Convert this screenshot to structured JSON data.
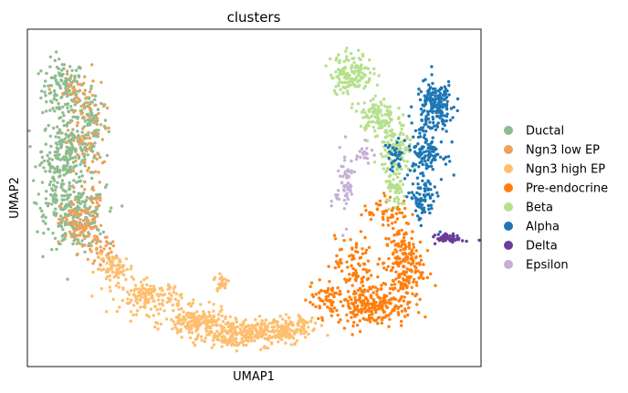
{
  "chart_data": {
    "type": "scatter",
    "title": "clusters",
    "xlabel": "UMAP1",
    "ylabel": "UMAP2",
    "grid": false,
    "legend_placement": "right",
    "series": [
      {
        "name": "Ductal",
        "color": "#8fbc8f",
        "regions": [
          [
            -7.9,
            6.2,
            0.55,
            0.75,
            140
          ],
          [
            -7.7,
            4.4,
            0.7,
            0.85,
            230
          ],
          [
            -7.5,
            2.4,
            0.75,
            0.75,
            230
          ],
          [
            -7.0,
            5.3,
            0.4,
            0.9,
            80
          ],
          [
            -8.2,
            3.4,
            0.35,
            0.8,
            60
          ]
        ]
      },
      {
        "name": "Ngn3 low EP",
        "color": "#f0a05a",
        "regions": [
          [
            -7.2,
            4.7,
            0.5,
            1.6,
            80
          ],
          [
            -7.3,
            2.2,
            0.55,
            0.65,
            110
          ],
          [
            -6.6,
            1.4,
            0.4,
            0.3,
            30
          ],
          [
            -7.6,
            6.1,
            0.4,
            0.5,
            25
          ]
        ]
      },
      {
        "name": "Ngn3 high EP",
        "color": "#fdbf6f",
        "regions": [
          [
            -6.3,
            0.9,
            0.5,
            0.35,
            80
          ],
          [
            -5.2,
            0.05,
            0.8,
            0.4,
            150
          ],
          [
            -3.8,
            -0.7,
            0.8,
            0.35,
            180
          ],
          [
            -2.6,
            -1.05,
            0.8,
            0.35,
            180
          ],
          [
            -1.4,
            -0.95,
            0.8,
            0.35,
            150
          ],
          [
            -3.0,
            0.5,
            0.2,
            0.25,
            25
          ],
          [
            -0.5,
            -0.75,
            0.45,
            0.25,
            50
          ]
        ]
      },
      {
        "name": "Pre-endocrine",
        "color": "#ff7f0e",
        "regions": [
          [
            1.6,
            -0.15,
            0.9,
            0.5,
            230
          ],
          [
            2.6,
            1.0,
            0.5,
            1.0,
            200
          ],
          [
            0.2,
            0.0,
            0.45,
            0.45,
            60
          ],
          [
            1.1,
            1.0,
            0.5,
            0.7,
            80
          ],
          [
            2.1,
            2.6,
            0.6,
            0.35,
            50
          ]
        ]
      },
      {
        "name": "Beta",
        "color": "#b5e08c",
        "regions": [
          [
            1.0,
            6.7,
            0.55,
            0.5,
            150
          ],
          [
            1.8,
            5.4,
            0.45,
            0.5,
            110
          ],
          [
            2.4,
            4.4,
            0.4,
            0.65,
            120
          ],
          [
            2.4,
            3.2,
            0.25,
            0.5,
            50
          ]
        ]
      },
      {
        "name": "Alpha",
        "color": "#1f77b4",
        "regions": [
          [
            3.6,
            5.8,
            0.5,
            0.55,
            170
          ],
          [
            3.3,
            4.4,
            0.45,
            0.7,
            150
          ],
          [
            3.2,
            2.9,
            0.35,
            0.5,
            80
          ],
          [
            2.3,
            4.2,
            0.25,
            0.4,
            30
          ]
        ]
      },
      {
        "name": "Delta",
        "color": "#6a3d9a",
        "regions": [
          [
            4.05,
            1.8,
            0.35,
            0.1,
            60
          ]
        ]
      },
      {
        "name": "Epsilon",
        "color": "#c5b0d5",
        "regions": [
          [
            0.8,
            3.4,
            0.25,
            0.9,
            60
          ],
          [
            1.4,
            4.3,
            0.2,
            0.25,
            20
          ]
        ]
      }
    ]
  }
}
